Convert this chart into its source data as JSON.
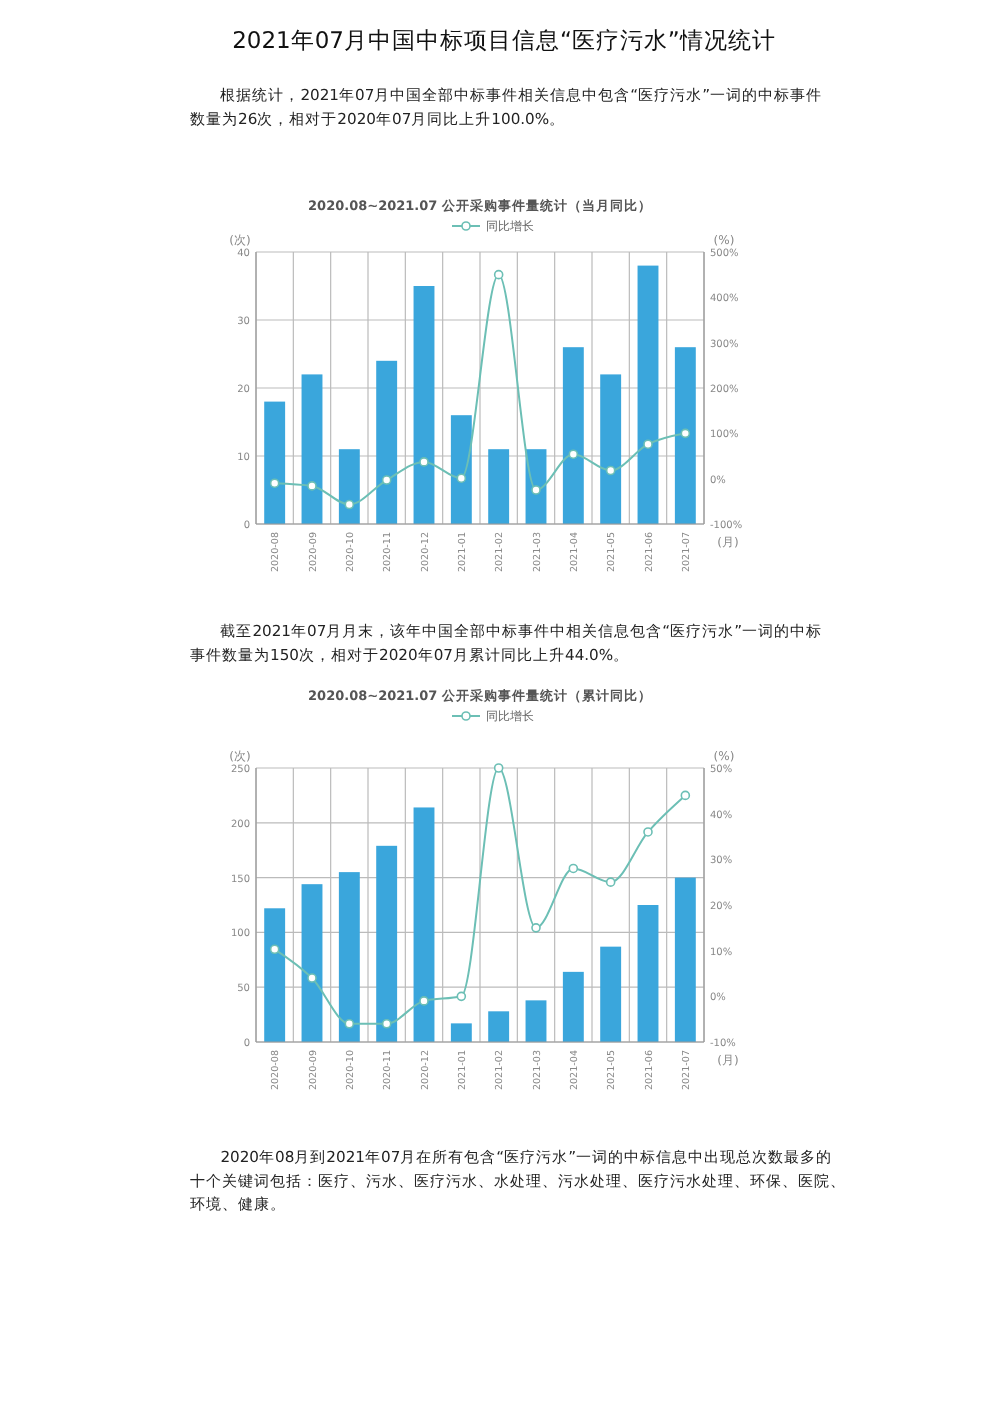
{
  "chart_data": [
    {
      "type": "bar",
      "title": "2020.08~2021.07 公开采购事件量统计（当月同比）",
      "annotations": [
        "2021年07月中国中标项目信息“医疗污水”情况统计",
        "根据统计，2021年07月中国全部中标事件相关信息中包含“医疗污水”一词的中标事件数量为26次，相对于2020年07月同比上升100.0%。"
      ],
      "xlabel": "(月)",
      "ylabel": "(次)",
      "y2label": "(%)",
      "categories": [
        "2020-08",
        "2020-09",
        "2020-10",
        "2020-11",
        "2020-12",
        "2021-01",
        "2021-02",
        "2021-03",
        "2021-04",
        "2021-05",
        "2021-06",
        "2021-07"
      ],
      "series": [
        {
          "color": "#3aa6dc",
          "values": [
            18,
            22,
            11,
            24,
            35,
            16,
            11,
            11,
            26,
            22,
            38,
            26
          ]
        },
        {
          "type": "line",
          "name": "同比增长",
          "axis": "y2",
          "color": "#6cbfb5",
          "values": [
            -10,
            -16,
            -57,
            -3,
            37,
            1,
            450,
            -25,
            54,
            18,
            76,
            100
          ]
        }
      ],
      "ylim": [
        0,
        40
      ],
      "yticks": [
        0,
        10,
        20,
        30,
        40
      ],
      "y2lim": [
        -100,
        500
      ],
      "y2ticks": [
        {
          "value": -100,
          "label": "-100%"
        },
        {
          "value": 0,
          "label": "0%"
        },
        {
          "value": 100,
          "label": "100%"
        },
        {
          "value": 200,
          "label": "200%"
        },
        {
          "value": 300,
          "label": "300%"
        },
        {
          "value": 400,
          "label": "400%"
        },
        {
          "value": 500,
          "label": "500%"
        }
      ],
      "grid": true,
      "legend": "top",
      "marker": "circle"
    },
    {
      "type": "bar",
      "title": "2020.08~2021.07 公开采购事件量统计（累计同比）",
      "annotations": [
        "截至2021年07月月末，该年中国全部中标事件中相关信息包含“医疗污水”一词的中标事件数量为150次，相对于2020年07月累计同比上升44.0%。",
        "2020年08月到2021年07月在所有包含“医疗污水”一词的中标信息中出现总次数最多的十个关键词包括：医疗、污水、医疗污水、水处理、污水处理、医疗污水处理、环保、医院、环境、健康。"
      ],
      "xlabel": "(月)",
      "ylabel": "(次)",
      "y2label": "(%)",
      "categories": [
        "2020-08",
        "2020-09",
        "2020-10",
        "2020-11",
        "2020-12",
        "2021-01",
        "2021-02",
        "2021-03",
        "2021-04",
        "2021-05",
        "2021-06",
        "2021-07"
      ],
      "series": [
        {
          "color": "#3aa6dc",
          "values": [
            122,
            144,
            155,
            179,
            214,
            17,
            28,
            38,
            64,
            87,
            125,
            150
          ]
        },
        {
          "type": "line",
          "name": "同比增长",
          "axis": "y2",
          "color": "#6cbfb5",
          "values": [
            10.3,
            4,
            -6,
            -6,
            -1,
            0,
            50,
            15,
            28,
            25,
            36,
            44
          ]
        }
      ],
      "ylim": [
        0,
        250
      ],
      "yticks": [
        0,
        50,
        100,
        150,
        200,
        250
      ],
      "y2lim": [
        -10,
        50
      ],
      "y2ticks": [
        {
          "value": -10,
          "label": "-10%"
        },
        {
          "value": 0,
          "label": "0%"
        },
        {
          "value": 10,
          "label": "10%"
        },
        {
          "value": 20,
          "label": "20%"
        },
        {
          "value": 30,
          "label": "30%"
        },
        {
          "value": 40,
          "label": "40%"
        },
        {
          "value": 50,
          "label": "50%"
        }
      ],
      "grid": true,
      "legend": "top",
      "marker": "circle"
    }
  ]
}
